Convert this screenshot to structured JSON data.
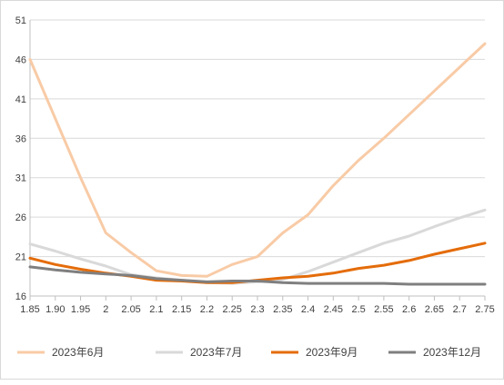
{
  "chart_data": {
    "type": "line",
    "x": [
      "1.85",
      "1.90",
      "1.95",
      "2",
      "2.05",
      "2.1",
      "2.15",
      "2.2",
      "2.25",
      "2.3",
      "2.35",
      "2.4",
      "2.45",
      "2.5",
      "2.55",
      "2.6",
      "2.65",
      "2.7",
      "2.75"
    ],
    "ylim": [
      16,
      51
    ],
    "yticks": [
      "16",
      "21",
      "26",
      "31",
      "36",
      "41",
      "46",
      "51"
    ],
    "grid": true,
    "legend": "bottom",
    "series": [
      {
        "name": "2023年6月",
        "color": "#f8cba6",
        "values": [
          46,
          38.5,
          31,
          24,
          21.5,
          19.2,
          18.6,
          18.5,
          20,
          21,
          24,
          26.3,
          30,
          33.2,
          36,
          39,
          42,
          45,
          48
        ]
      },
      {
        "name": "2023年7月",
        "color": "#d9d9d9",
        "values": [
          22.6,
          21.7,
          20.7,
          19.8,
          18.7,
          18.3,
          18.0,
          17.7,
          17.6,
          17.8,
          18.1,
          19.1,
          20.3,
          21.5,
          22.7,
          23.6,
          24.8,
          25.9,
          26.9
        ]
      },
      {
        "name": "2023年9月",
        "color": "#e46c0a",
        "values": [
          20.8,
          20.0,
          19.4,
          18.9,
          18.5,
          18.0,
          17.9,
          17.7,
          17.7,
          18.0,
          18.3,
          18.5,
          18.9,
          19.5,
          19.9,
          20.5,
          21.3,
          22.0,
          22.7
        ]
      },
      {
        "name": "2023年12月",
        "color": "#7f7f7f",
        "values": [
          19.7,
          19.3,
          19.0,
          18.8,
          18.6,
          18.2,
          18.0,
          17.8,
          17.9,
          17.9,
          17.7,
          17.6,
          17.6,
          17.6,
          17.6,
          17.5,
          17.5,
          17.5,
          17.5
        ]
      }
    ]
  }
}
